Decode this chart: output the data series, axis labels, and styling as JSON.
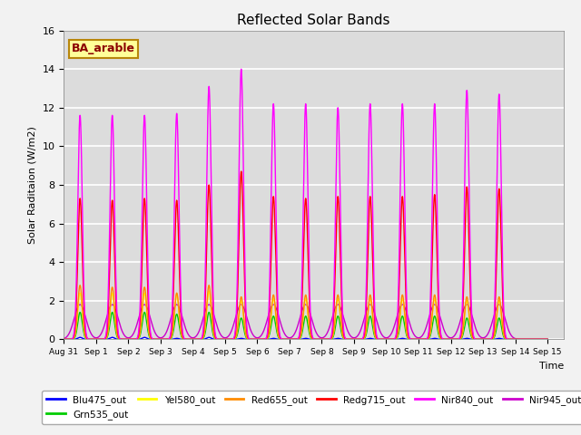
{
  "title": "Reflected Solar Bands",
  "xlabel": "Time",
  "ylabel": "Solar Raditaion (W/m2)",
  "ylim": [
    0,
    16
  ],
  "annotation": "BA_arable",
  "annotation_color": "#8B0000",
  "annotation_bg": "#FFFF99",
  "annotation_edge": "#B8860B",
  "plot_bg": "#DCDCDC",
  "fig_bg": "#F2F2F2",
  "grid_color": "white",
  "colors": {
    "Blu475_out": "#0000FF",
    "Grn535_out": "#00CC00",
    "Yel580_out": "#FFFF00",
    "Red655_out": "#FF8C00",
    "Redg715_out": "#FF0000",
    "Nir840_out": "#FF00FF",
    "Nir945_out": "#CC00CC"
  },
  "nir840_peaks": [
    11.6,
    11.6,
    11.6,
    11.7,
    13.1,
    14.0,
    12.2,
    12.2,
    12.0,
    12.2,
    12.2,
    12.2,
    12.9,
    12.7
  ],
  "redg715_peaks": [
    7.3,
    7.2,
    7.3,
    7.2,
    8.0,
    8.7,
    7.4,
    7.3,
    7.4,
    7.4,
    7.4,
    7.5,
    7.9,
    7.8
  ],
  "red655_peaks": [
    2.8,
    2.7,
    2.7,
    2.4,
    2.8,
    2.2,
    2.3,
    2.3,
    2.3,
    2.3,
    2.3,
    2.3,
    2.2,
    2.2
  ],
  "yel580_peaks": [
    2.4,
    2.4,
    2.4,
    2.3,
    2.5,
    2.0,
    2.1,
    2.1,
    2.1,
    2.1,
    2.1,
    2.1,
    2.0,
    2.0
  ],
  "grn535_peaks": [
    1.4,
    1.4,
    1.4,
    1.3,
    1.4,
    1.1,
    1.2,
    1.2,
    1.2,
    1.2,
    1.2,
    1.2,
    1.1,
    1.1
  ],
  "blu475_peaks": [
    0.1,
    0.1,
    0.1,
    0.05,
    0.1,
    0.05,
    0.05,
    0.05,
    0.05,
    0.05,
    0.05,
    0.05,
    0.05,
    0.05
  ],
  "nir945_peaks": [
    1.8,
    1.8,
    1.8,
    1.8,
    1.8,
    1.8,
    1.8,
    1.8,
    1.8,
    1.8,
    1.8,
    1.8,
    1.8,
    1.8
  ],
  "narrow_sigma": 0.07,
  "wide_sigma": 0.18,
  "xtick_labels": [
    "Aug 31",
    "Sep 1",
    "Sep 2",
    "Sep 3",
    "Sep 4",
    "Sep 5",
    "Sep 6",
    "Sep 7",
    "Sep 8",
    "Sep 9",
    "Sep 10",
    "Sep 11",
    "Sep 12",
    "Sep 13",
    "Sep 14",
    "Sep 15"
  ]
}
